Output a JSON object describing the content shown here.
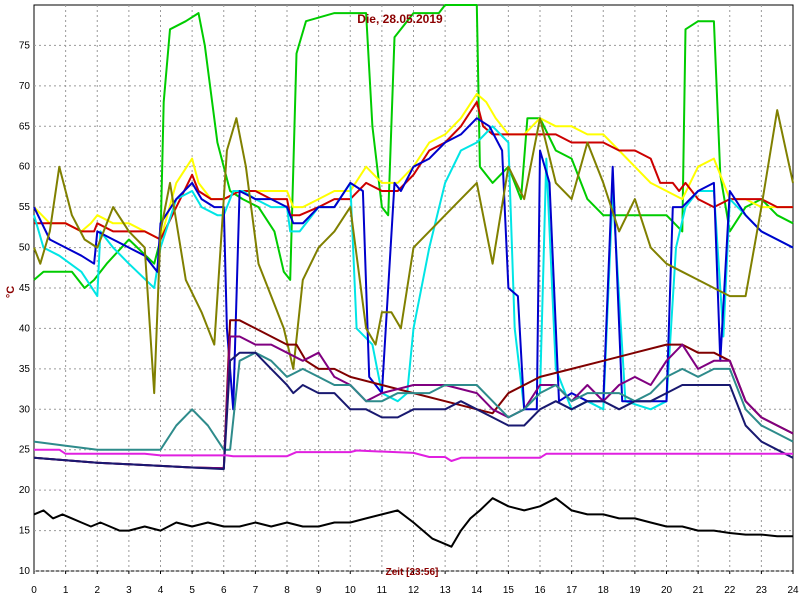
{
  "chart_data": {
    "type": "line",
    "title": "Die, 28.05.2019",
    "xlabel": "Zeit [23:56]",
    "ylabel": "°C",
    "xlim": [
      0,
      24
    ],
    "ylim": [
      10,
      80
    ],
    "x_ticks": [
      0,
      1,
      2,
      3,
      4,
      5,
      6,
      7,
      8,
      9,
      10,
      11,
      12,
      13,
      14,
      15,
      16,
      17,
      18,
      19,
      20,
      21,
      22,
      23,
      24
    ],
    "y_ticks": [
      10,
      15,
      20,
      25,
      30,
      35,
      40,
      45,
      50,
      55,
      60,
      65,
      70,
      75
    ],
    "grid": true,
    "series": [
      {
        "color": "#00cc00",
        "x": [
          0,
          0.3,
          0.8,
          1.2,
          1.6,
          1.9,
          2.3,
          3,
          3.8,
          4.0,
          4.1,
          4.3,
          4.8,
          5.2,
          5.4,
          5.8,
          6.2,
          6.6,
          7.1,
          7.6,
          7.9,
          8.1,
          8.3,
          8.6,
          9.5,
          10.5,
          10.7,
          11,
          11.2,
          11.4,
          12,
          12.8,
          13,
          13.3,
          14.0,
          14.1,
          14.5,
          15,
          15.4,
          15.6,
          16,
          16.5,
          17,
          17.5,
          18,
          18.5,
          19,
          19.5,
          20,
          20.5,
          20.6,
          21,
          21.5,
          21.7,
          22,
          22.5,
          23,
          23.5,
          24
        ],
        "y": [
          46,
          47,
          47,
          47,
          45,
          46,
          48,
          51,
          48,
          51,
          68,
          77,
          78,
          79,
          75,
          63,
          57,
          56,
          55,
          52,
          47,
          46,
          74,
          78,
          79,
          79,
          65,
          55,
          54,
          76,
          79,
          79,
          80,
          80,
          80,
          60,
          58,
          60,
          56,
          66,
          66,
          62,
          61,
          56,
          54,
          54,
          54,
          54,
          54,
          52,
          77,
          78,
          78,
          59,
          52,
          55,
          56,
          54,
          53
        ]
      },
      {
        "color": "#ffff00",
        "x": [
          0,
          0.5,
          1,
          1.5,
          1.8,
          2,
          2.5,
          3,
          3.5,
          4,
          4.5,
          5,
          5.2,
          5.6,
          6,
          6.5,
          7,
          7.5,
          8,
          8.2,
          8.5,
          9,
          9.5,
          10,
          10.5,
          11,
          11.5,
          12,
          12.5,
          13,
          13.5,
          14,
          14.3,
          14.6,
          15,
          15.5,
          16,
          16.5,
          17,
          17.5,
          18,
          18.5,
          19,
          19.5,
          20,
          20.5,
          21,
          21.5,
          21.7,
          22,
          22.5,
          23,
          23.5,
          24
        ],
        "y": [
          55,
          53,
          53,
          52,
          53,
          54,
          53,
          53,
          52,
          51,
          58,
          61,
          58,
          56,
          56,
          57,
          57,
          57,
          57,
          55,
          55,
          56,
          57,
          57,
          60,
          58,
          58,
          60,
          63,
          64,
          66,
          69,
          68,
          66,
          64,
          64,
          66,
          65,
          65,
          64,
          64,
          62,
          60,
          58,
          57,
          56,
          60,
          61,
          59,
          56,
          56,
          55,
          55,
          55
        ]
      },
      {
        "color": "#cc0000",
        "x": [
          0,
          0.5,
          1,
          1.5,
          1.9,
          2,
          2.5,
          3,
          3.5,
          4,
          4.5,
          5,
          5.2,
          5.6,
          6,
          6.5,
          7,
          7.5,
          8,
          8.1,
          8.4,
          9,
          9.5,
          10,
          10.5,
          11,
          11.5,
          12,
          12.5,
          13,
          13.5,
          14,
          14.2,
          14.5,
          15,
          15.5,
          16,
          16.5,
          17,
          17.5,
          18,
          18.5,
          19,
          19.5,
          19.8,
          20,
          20.2,
          20.4,
          20.6,
          21,
          21.5,
          22,
          22.5,
          23,
          23.5,
          24
        ],
        "y": [
          53,
          53,
          53,
          52,
          52,
          53,
          52,
          52,
          52,
          51,
          55,
          59,
          57,
          56,
          56,
          57,
          57,
          56,
          56,
          54,
          54,
          55,
          56,
          56,
          58,
          57,
          57,
          59,
          62,
          63,
          65,
          68,
          65,
          64,
          64,
          64,
          64,
          64,
          63,
          63,
          63,
          62,
          62,
          61,
          58,
          58,
          58,
          57,
          58,
          56,
          55,
          56,
          56,
          56,
          55,
          55
        ]
      },
      {
        "color": "#00e5e5",
        "x": [
          0,
          0.3,
          0.8,
          1.5,
          2,
          2.1,
          2.5,
          3,
          3.8,
          4,
          4.5,
          5,
          5.3,
          5.8,
          6,
          6.3,
          6.6,
          7,
          7.5,
          8,
          8.1,
          8.4,
          9,
          9.5,
          10,
          10.2,
          10.7,
          11,
          11.5,
          11.8,
          12,
          12.5,
          13,
          13.5,
          14,
          14.5,
          15,
          15.2,
          15.5,
          16,
          16.2,
          16.5,
          17,
          17.5,
          18,
          18.3,
          18.7,
          19.5,
          20,
          20.3,
          20.6,
          21,
          21.5,
          21.8,
          22,
          22.5,
          23,
          23.5,
          24
        ],
        "y": [
          54,
          50,
          49,
          47,
          44,
          52,
          50,
          48,
          45,
          50,
          56,
          57,
          55,
          54,
          54,
          57,
          57,
          56,
          55,
          55,
          52,
          52,
          55,
          55,
          58,
          40,
          38,
          32,
          31,
          32,
          40,
          50,
          58,
          62,
          63,
          65,
          63,
          40,
          30,
          32,
          61,
          35,
          30,
          31,
          30,
          57,
          31,
          30,
          31,
          50,
          55,
          57,
          57,
          39,
          56,
          54,
          52,
          51,
          50
        ]
      },
      {
        "color": "#0000cc",
        "x": [
          0,
          0.5,
          1,
          1.5,
          1.9,
          2,
          2.5,
          3,
          3.5,
          3.9,
          4,
          4.5,
          5,
          5.3,
          5.7,
          6,
          6.1,
          6.3,
          6.5,
          7,
          7.5,
          8,
          8.2,
          8.5,
          9,
          9.5,
          10,
          10.4,
          10.6,
          11,
          11.4,
          11.6,
          12,
          12.5,
          13,
          13.5,
          14,
          14.4,
          14.8,
          15,
          15.3,
          15.5,
          15.9,
          16,
          16.3,
          16.6,
          17,
          17.5,
          18,
          18.3,
          18.6,
          19,
          19.5,
          20,
          20.2,
          20.5,
          21,
          21.5,
          21.7,
          22,
          22.5,
          23,
          23.5,
          24
        ],
        "y": [
          55,
          51,
          50,
          49,
          48,
          52,
          51,
          50,
          49,
          47,
          53,
          56,
          58,
          56,
          55,
          55,
          40,
          30,
          57,
          56,
          56,
          55,
          53,
          53,
          55,
          55,
          58,
          57,
          34,
          32,
          58,
          57,
          60,
          61,
          63,
          64,
          66,
          65,
          62,
          45,
          44,
          30,
          30,
          62,
          58,
          31,
          32,
          31,
          31,
          60,
          31,
          31,
          31,
          31,
          55,
          55,
          57,
          58,
          36,
          57,
          54,
          52,
          51,
          50
        ]
      },
      {
        "color": "#808000",
        "x": [
          0,
          0.2,
          0.5,
          0.8,
          1.2,
          1.6,
          2,
          2.5,
          3,
          3.5,
          3.8,
          4,
          4.3,
          4.8,
          5.3,
          5.7,
          6.1,
          6.4,
          6.7,
          7.1,
          7.5,
          7.9,
          8.2,
          8.5,
          9,
          9.5,
          10,
          10.5,
          10.8,
          11,
          11.3,
          11.6,
          12,
          12.5,
          13,
          13.5,
          14,
          14.5,
          15,
          15.5,
          16,
          16.5,
          17,
          17.5,
          18,
          18.5,
          19,
          19.5,
          20,
          20.5,
          21,
          21.5,
          22,
          22.5,
          23,
          23.5,
          24
        ],
        "y": [
          50,
          48,
          52,
          60,
          54,
          51,
          50,
          55,
          52,
          50,
          32,
          52,
          58,
          46,
          42,
          38,
          62,
          66,
          60,
          48,
          44,
          40,
          35,
          46,
          50,
          52,
          55,
          40,
          38,
          42,
          42,
          40,
          50,
          52,
          54,
          56,
          58,
          48,
          60,
          56,
          66,
          58,
          56,
          63,
          58,
          52,
          56,
          50,
          48,
          47,
          46,
          45,
          44,
          44,
          55,
          67,
          58
        ]
      },
      {
        "color": "#800000",
        "x": [
          0,
          1,
          2,
          3,
          4,
          5,
          6,
          6.2,
          6.5,
          7,
          7.5,
          8,
          8.3,
          8.6,
          9,
          9.5,
          10,
          11,
          12,
          13,
          14,
          14.5,
          15,
          16,
          17,
          18,
          19,
          20,
          20.5,
          21,
          21.5,
          22,
          22.5,
          23,
          23.5,
          24
        ],
        "y": [
          24,
          23.7,
          23.4,
          23.2,
          23,
          22.8,
          22.7,
          41,
          41,
          40,
          39,
          38,
          38,
          36,
          35,
          35,
          34,
          33,
          32,
          31,
          30,
          29.5,
          32,
          34,
          35,
          36,
          37,
          38,
          38,
          37,
          37,
          36,
          31,
          29,
          28,
          27
        ]
      },
      {
        "color": "#800080",
        "x": [
          0,
          1,
          2,
          3,
          4,
          5,
          6,
          6.2,
          6.5,
          7,
          7.5,
          8,
          8.5,
          9,
          9.5,
          10,
          10.5,
          11,
          12,
          13,
          14,
          14.5,
          15,
          15.5,
          16,
          16.5,
          17,
          17.5,
          18,
          18.5,
          19,
          19.5,
          20,
          20.5,
          21,
          21.5,
          22,
          22.5,
          23,
          23.5,
          24
        ],
        "y": [
          24,
          23.7,
          23.4,
          23.2,
          23,
          22.8,
          22.7,
          39,
          39,
          38,
          38,
          37,
          36,
          37,
          34,
          33,
          31,
          32,
          33,
          33,
          32,
          30,
          29,
          30,
          33,
          33,
          31,
          33,
          31,
          33,
          34,
          33,
          36,
          38,
          35,
          36,
          36,
          31,
          29,
          28,
          27
        ]
      },
      {
        "color": "#2e8b8b",
        "x": [
          0,
          1,
          2,
          3,
          4,
          4.5,
          5,
          5.5,
          6,
          6.2,
          6.5,
          7,
          7.5,
          8,
          8.5,
          9,
          9.5,
          10,
          10.5,
          11,
          11.5,
          12,
          12.5,
          13,
          13.5,
          14,
          14.5,
          15,
          15.5,
          16,
          16.5,
          17,
          17.5,
          18,
          18.5,
          19,
          19.5,
          20,
          20.5,
          21,
          21.5,
          22,
          22.5,
          23,
          23.5,
          24
        ],
        "y": [
          26,
          25.5,
          25,
          25,
          25,
          28,
          30,
          28,
          25,
          25,
          36,
          37,
          36,
          34,
          35,
          34,
          33,
          33,
          31,
          31,
          32,
          32,
          32,
          33,
          33,
          33,
          31,
          29,
          30,
          32,
          33,
          31,
          32,
          32,
          32,
          31,
          32,
          34,
          35,
          34,
          35,
          35,
          30,
          28,
          27,
          26
        ]
      },
      {
        "color": "#191970",
        "x": [
          0,
          1,
          2,
          3,
          4,
          5,
          6,
          6.2,
          6.5,
          7,
          7.5,
          8,
          8.2,
          8.5,
          9,
          9.5,
          10,
          10.5,
          11,
          11.5,
          12,
          12.5,
          13,
          13.5,
          14,
          14.5,
          15,
          15.5,
          16,
          16.5,
          17,
          17.5,
          18,
          18.5,
          19,
          19.5,
          20,
          20.5,
          21,
          21.5,
          22,
          22.5,
          23,
          23.5,
          24
        ],
        "y": [
          24,
          23.7,
          23.4,
          23.2,
          23,
          22.8,
          22.6,
          36,
          37,
          37,
          35,
          33,
          32,
          33,
          32,
          32,
          30,
          30,
          29,
          29,
          30,
          30,
          30,
          31,
          30,
          29,
          28,
          28,
          30,
          31,
          30,
          31,
          31,
          30,
          31,
          31,
          32,
          33,
          33,
          33,
          33,
          28,
          26,
          25,
          24
        ]
      },
      {
        "color": "#e020e0",
        "x": [
          0,
          0.8,
          1,
          3.5,
          4,
          6.1,
          6.3,
          8,
          8.3,
          10,
          10.2,
          12,
          12.5,
          13,
          13.2,
          13.5,
          14,
          15,
          15.5,
          16,
          16.2,
          18,
          20,
          22,
          24
        ],
        "y": [
          25,
          25,
          24.5,
          24.5,
          24.3,
          24.3,
          24.2,
          24.2,
          24.7,
          24.7,
          24.9,
          24.6,
          24.1,
          24.1,
          23.6,
          24,
          24,
          24,
          24,
          24,
          24.5,
          24.5,
          24.5,
          24.5,
          24.5
        ]
      },
      {
        "color": "#000000",
        "x": [
          0,
          0.3,
          0.6,
          0.9,
          1.2,
          1.5,
          1.8,
          2.1,
          2.4,
          2.7,
          3,
          3.5,
          4,
          4.5,
          5,
          5.5,
          6,
          6.5,
          7,
          7.5,
          8,
          8.5,
          9,
          9.5,
          10,
          10.5,
          11,
          11.5,
          12,
          12.3,
          12.6,
          12.9,
          13.2,
          13.5,
          13.8,
          14.1,
          14.5,
          15,
          15.5,
          16,
          16.5,
          17,
          17.5,
          18,
          18.5,
          19,
          19.5,
          20,
          20.5,
          21,
          21.5,
          22,
          22.5,
          23,
          23.5,
          24
        ],
        "y": [
          17,
          17.5,
          16.5,
          17,
          16.5,
          16,
          15.5,
          16,
          15.5,
          15,
          15,
          15.5,
          15,
          16,
          15.5,
          16,
          15.5,
          15.5,
          16,
          15.5,
          16,
          15.5,
          15.5,
          16,
          16,
          16.5,
          17,
          17.5,
          16,
          15,
          14,
          13.5,
          13,
          15,
          16.5,
          17.5,
          19,
          18,
          17.5,
          18,
          19,
          17.5,
          17,
          17,
          16.5,
          16.5,
          16,
          15.5,
          15.5,
          15,
          15,
          14.7,
          14.5,
          14.5,
          14.3,
          14.3
        ]
      }
    ]
  }
}
